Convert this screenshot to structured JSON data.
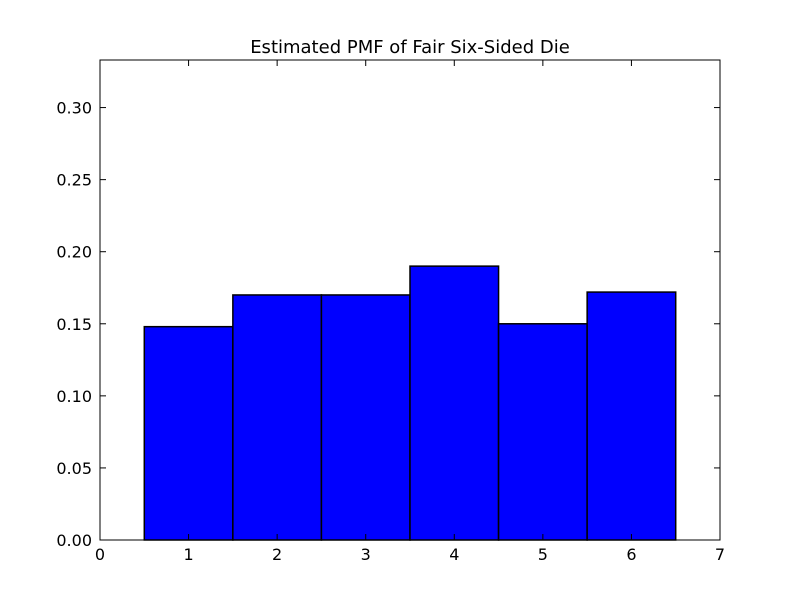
{
  "chart_data": {
    "type": "bar",
    "title": "Estimated PMF of Fair Six-Sided Die",
    "xlabel": "",
    "ylabel": "",
    "categories": [
      1,
      2,
      3,
      4,
      5,
      6
    ],
    "values": [
      0.148,
      0.17,
      0.17,
      0.19,
      0.15,
      0.172
    ],
    "bar_width": 1.0,
    "xlim": [
      0,
      7
    ],
    "ylim": [
      0,
      0.333
    ],
    "x_ticks": [
      "0",
      "1",
      "2",
      "3",
      "4",
      "5",
      "6",
      "7"
    ],
    "y_ticks": [
      "0.00",
      "0.05",
      "0.10",
      "0.15",
      "0.20",
      "0.25",
      "0.30"
    ],
    "grid": false,
    "legend": "none",
    "bar_color": "#0000ff",
    "edge_color": "#000000"
  }
}
